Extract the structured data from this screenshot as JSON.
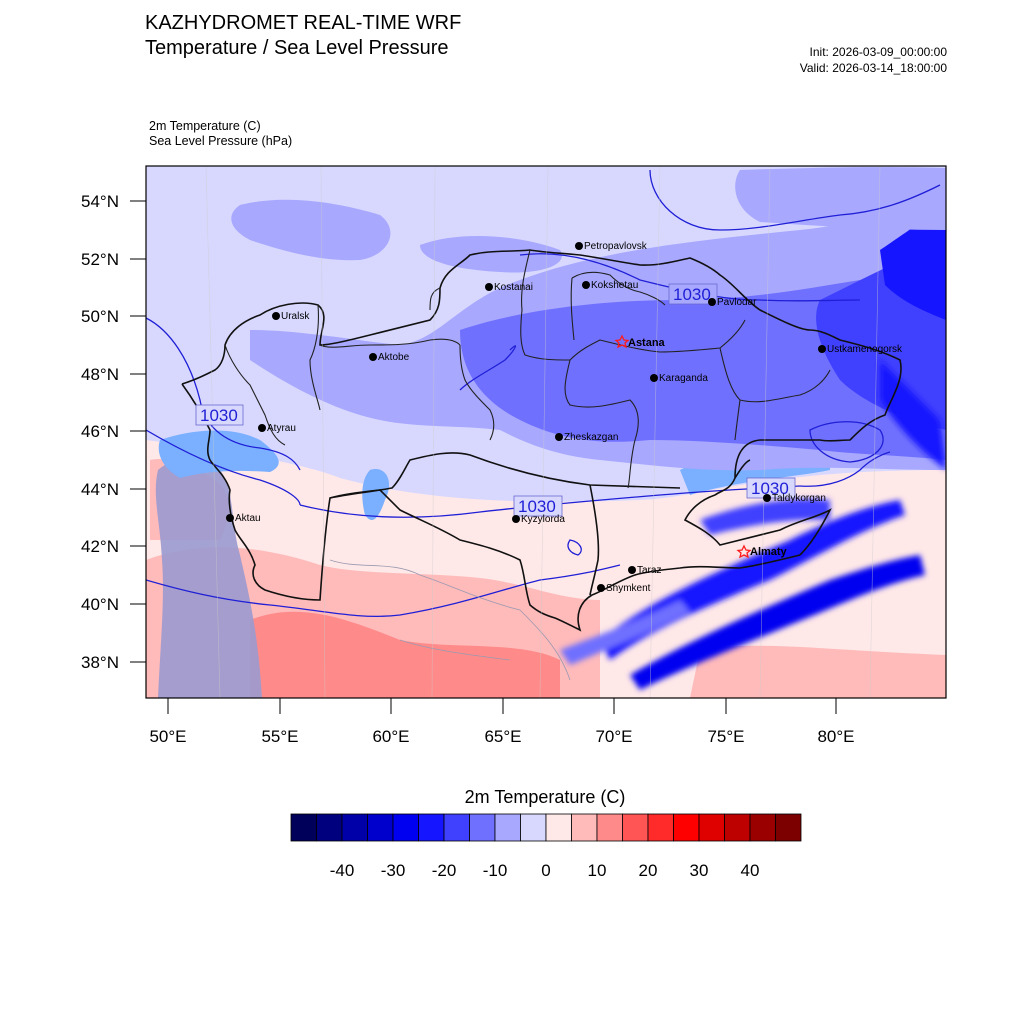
{
  "header": {
    "title": "KAZHYDROMET REAL-TIME WRF",
    "subtitle": "Temperature / Sea Level Pressure",
    "init": "Init: 2026-03-09_00:00:00",
    "valid": "Valid: 2026-03-14_18:00:00"
  },
  "fields": {
    "temp_label": "2m Temperature   (C)",
    "pressure_label": "Sea Level Pressure   (hPa)"
  },
  "map": {
    "lon_labels": [
      "50°E",
      "55°E",
      "60°E",
      "65°E",
      "70°E",
      "75°E",
      "80°E"
    ],
    "lat_labels": [
      "54°N",
      "52°N",
      "50°N",
      "48°N",
      "46°N",
      "44°N",
      "42°N",
      "40°N",
      "38°N"
    ],
    "isobar_labels": [
      "1030",
      "1030",
      "1030",
      "1030"
    ],
    "cities": [
      {
        "name": "Petropavlovsk"
      },
      {
        "name": "Kostanai"
      },
      {
        "name": "Kokshetau"
      },
      {
        "name": "Pavlodar"
      },
      {
        "name": "Uralsk"
      },
      {
        "name": "Aktobe"
      },
      {
        "name": "Astana"
      },
      {
        "name": "Ustkamenogorsk"
      },
      {
        "name": "Karaganda"
      },
      {
        "name": "Atyrau"
      },
      {
        "name": "Zheskazgan"
      },
      {
        "name": "Taldykorgan"
      },
      {
        "name": "Kyzylorda"
      },
      {
        "name": "Aktau"
      },
      {
        "name": "Almaty"
      },
      {
        "name": "Taraz"
      },
      {
        "name": "Shymkent"
      }
    ],
    "colors": {
      "isobar": "#1f1fd6",
      "border": "#111111",
      "capital_marker": "#ff1a1a"
    }
  },
  "colorbar": {
    "title": "2m Temperature  (C)",
    "labels": [
      "-40",
      "-30",
      "-20",
      "-10",
      "0",
      "10",
      "20",
      "30",
      "40"
    ],
    "colors": [
      "#00005a",
      "#00007f",
      "#0000a8",
      "#0000cc",
      "#0000f0",
      "#1515ff",
      "#4040ff",
      "#7070ff",
      "#a8a8ff",
      "#d8d8ff",
      "#ffe8e8",
      "#ffbaba",
      "#ff8a8a",
      "#ff5555",
      "#ff2a2a",
      "#ff0000",
      "#df0000",
      "#bd0000",
      "#9a0000",
      "#7c0000"
    ]
  }
}
